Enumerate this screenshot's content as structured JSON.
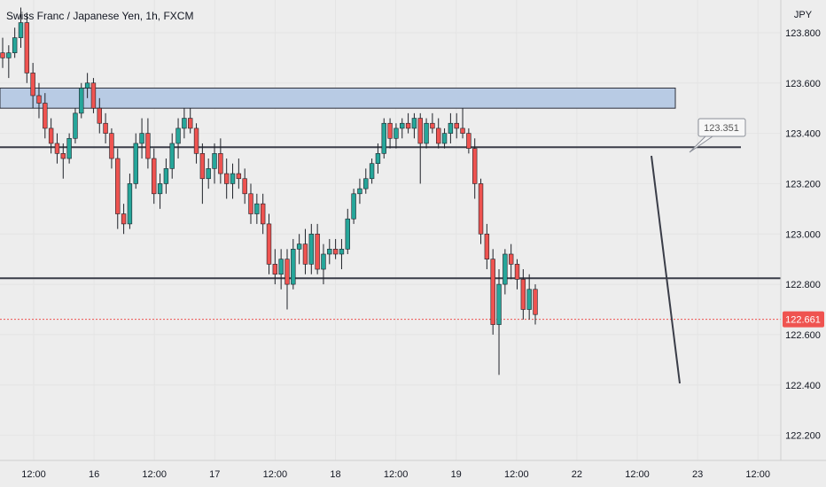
{
  "header": {
    "title": "Swiss Franc / Japanese Yen, 1h, FXCM",
    "currency": "JPY"
  },
  "chart_data": {
    "type": "candlestick",
    "title": "Swiss Franc / Japanese Yen, 1h, FXCM",
    "ylabel": "JPY",
    "ylim": [
      122.1,
      123.93
    ],
    "y_ticks": [
      "123.800",
      "123.600",
      "123.400",
      "123.200",
      "123.000",
      "122.800",
      "122.600",
      "122.400",
      "122.200"
    ],
    "x_ticks": [
      "12:00",
      "16",
      "12:00",
      "17",
      "12:00",
      "18",
      "12:00",
      "19",
      "12:00",
      "22",
      "12:00",
      "23",
      "12:00"
    ],
    "current_price": "122.661",
    "current_price_value": 122.661,
    "annotations": {
      "callout_label": "123.351",
      "support_level": 122.824,
      "resistance_level": 123.345,
      "supply_zone": [
        123.5,
        123.58
      ]
    },
    "candles": [
      [
        123.72,
        123.78,
        123.66,
        123.7
      ],
      [
        123.7,
        123.75,
        123.62,
        123.72
      ],
      [
        123.72,
        123.82,
        123.7,
        123.78
      ],
      [
        123.78,
        123.9,
        123.74,
        123.84
      ],
      [
        123.84,
        123.88,
        123.6,
        123.64
      ],
      [
        123.64,
        123.68,
        123.5,
        123.55
      ],
      [
        123.55,
        123.6,
        123.46,
        123.52
      ],
      [
        123.52,
        123.56,
        123.38,
        123.42
      ],
      [
        123.42,
        123.46,
        123.32,
        123.36
      ],
      [
        123.36,
        123.4,
        123.28,
        123.32
      ],
      [
        123.32,
        123.36,
        123.22,
        123.3
      ],
      [
        123.3,
        123.4,
        123.28,
        123.38
      ],
      [
        123.38,
        123.5,
        123.36,
        123.48
      ],
      [
        123.48,
        123.6,
        123.46,
        123.58
      ],
      [
        123.58,
        123.64,
        123.54,
        123.6
      ],
      [
        123.6,
        123.62,
        123.48,
        123.5
      ],
      [
        123.5,
        123.54,
        123.4,
        123.44
      ],
      [
        123.44,
        123.48,
        123.36,
        123.4
      ],
      [
        123.4,
        123.42,
        123.26,
        123.3
      ],
      [
        123.3,
        123.34,
        123.02,
        123.08
      ],
      [
        123.08,
        123.12,
        123.0,
        123.04
      ],
      [
        123.04,
        123.24,
        123.02,
        123.2
      ],
      [
        123.2,
        123.4,
        123.18,
        123.36
      ],
      [
        123.36,
        123.46,
        123.3,
        123.4
      ],
      [
        123.4,
        123.46,
        123.26,
        123.3
      ],
      [
        123.3,
        123.34,
        123.12,
        123.16
      ],
      [
        123.16,
        123.24,
        123.1,
        123.2
      ],
      [
        123.2,
        123.3,
        123.16,
        123.26
      ],
      [
        123.26,
        123.4,
        123.22,
        123.36
      ],
      [
        123.36,
        123.46,
        123.3,
        123.42
      ],
      [
        123.42,
        123.5,
        123.38,
        123.46
      ],
      [
        123.46,
        123.5,
        123.4,
        123.42
      ],
      [
        123.42,
        123.44,
        123.28,
        123.32
      ],
      [
        123.32,
        123.36,
        123.12,
        123.22
      ],
      [
        123.22,
        123.3,
        123.18,
        123.26
      ],
      [
        123.26,
        123.36,
        123.2,
        123.32
      ],
      [
        123.32,
        123.38,
        123.2,
        123.24
      ],
      [
        123.24,
        123.3,
        123.14,
        123.2
      ],
      [
        123.2,
        123.28,
        123.14,
        123.24
      ],
      [
        123.24,
        123.3,
        123.18,
        123.22
      ],
      [
        123.22,
        123.26,
        123.12,
        123.16
      ],
      [
        123.16,
        123.2,
        123.04,
        123.08
      ],
      [
        123.08,
        123.16,
        123.04,
        123.12
      ],
      [
        123.12,
        123.16,
        123.0,
        123.04
      ],
      [
        123.04,
        123.08,
        122.84,
        122.88
      ],
      [
        122.88,
        122.94,
        122.8,
        122.84
      ],
      [
        122.84,
        122.94,
        122.78,
        122.9
      ],
      [
        122.9,
        122.94,
        122.7,
        122.8
      ],
      [
        122.8,
        122.98,
        122.78,
        122.94
      ],
      [
        122.94,
        123.0,
        122.88,
        122.96
      ],
      [
        122.96,
        123.02,
        122.84,
        122.88
      ],
      [
        122.88,
        123.04,
        122.84,
        123.0
      ],
      [
        123.0,
        123.04,
        122.84,
        122.86
      ],
      [
        122.86,
        122.96,
        122.8,
        122.92
      ],
      [
        122.92,
        122.98,
        122.88,
        122.94
      ],
      [
        122.94,
        122.98,
        122.9,
        122.92
      ],
      [
        122.92,
        122.98,
        122.86,
        122.94
      ],
      [
        122.94,
        123.1,
        122.92,
        123.06
      ],
      [
        123.06,
        123.18,
        123.04,
        123.16
      ],
      [
        123.16,
        123.22,
        123.12,
        123.18
      ],
      [
        123.18,
        123.26,
        123.16,
        123.22
      ],
      [
        123.22,
        123.3,
        123.2,
        123.28
      ],
      [
        123.28,
        123.36,
        123.24,
        123.32
      ],
      [
        123.32,
        123.46,
        123.3,
        123.44
      ],
      [
        123.44,
        123.46,
        123.34,
        123.38
      ],
      [
        123.38,
        123.44,
        123.34,
        123.42
      ],
      [
        123.42,
        123.46,
        123.38,
        123.44
      ],
      [
        123.44,
        123.48,
        123.4,
        123.42
      ],
      [
        123.42,
        123.48,
        123.38,
        123.46
      ],
      [
        123.46,
        123.48,
        123.2,
        123.36
      ],
      [
        123.36,
        123.46,
        123.34,
        123.44
      ],
      [
        123.44,
        123.48,
        123.4,
        123.42
      ],
      [
        123.42,
        123.46,
        123.34,
        123.36
      ],
      [
        123.36,
        123.42,
        123.34,
        123.4
      ],
      [
        123.4,
        123.48,
        123.36,
        123.44
      ],
      [
        123.44,
        123.48,
        123.38,
        123.42
      ],
      [
        123.42,
        123.5,
        123.38,
        123.4
      ],
      [
        123.4,
        123.42,
        123.32,
        123.34
      ],
      [
        123.34,
        123.38,
        123.14,
        123.2
      ],
      [
        123.2,
        123.22,
        122.96,
        123.0
      ],
      [
        123.0,
        123.04,
        122.86,
        122.9
      ],
      [
        122.9,
        122.94,
        122.6,
        122.64
      ],
      [
        122.64,
        122.86,
        122.44,
        122.8
      ],
      [
        122.8,
        122.94,
        122.76,
        122.92
      ],
      [
        122.92,
        122.96,
        122.82,
        122.88
      ],
      [
        122.88,
        122.9,
        122.78,
        122.82
      ],
      [
        122.82,
        122.86,
        122.66,
        122.7
      ],
      [
        122.7,
        122.84,
        122.66,
        122.78
      ],
      [
        122.78,
        122.8,
        122.64,
        122.68
      ]
    ]
  },
  "colors": {
    "background": "#ededed",
    "bull": "#26a69a",
    "bear": "#ef5350",
    "zone_fill": "#b8cbe4",
    "zone_border": "#2b2f3a",
    "level_line": "#3a3d48",
    "price_tag": "#ef5350"
  }
}
